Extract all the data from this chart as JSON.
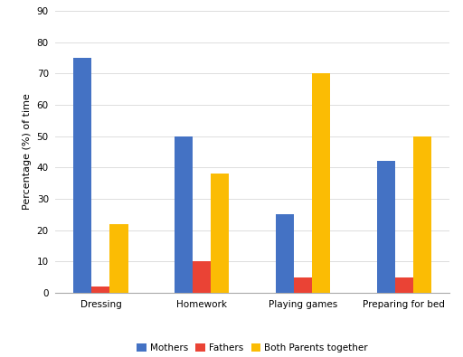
{
  "categories": [
    "Dressing",
    "Homework",
    "Playing games",
    "Preparing for bed"
  ],
  "series": {
    "Mothers": [
      75,
      50,
      25,
      42
    ],
    "Fathers": [
      2,
      10,
      5,
      5
    ],
    "Both Parents together": [
      22,
      38,
      70,
      50
    ]
  },
  "colors": {
    "Mothers": "#4472C4",
    "Fathers": "#EA4335",
    "Both Parents together": "#FBBC04"
  },
  "ylabel": "Percentage (%) of time",
  "ylim": [
    0,
    90
  ],
  "yticks": [
    0,
    10,
    20,
    30,
    40,
    50,
    60,
    70,
    80,
    90
  ],
  "background_color": "#ffffff",
  "grid_color": "#dddddd",
  "bar_width": 0.18,
  "axis_fontsize": 8,
  "tick_fontsize": 7.5,
  "legend_fontsize": 7.5
}
